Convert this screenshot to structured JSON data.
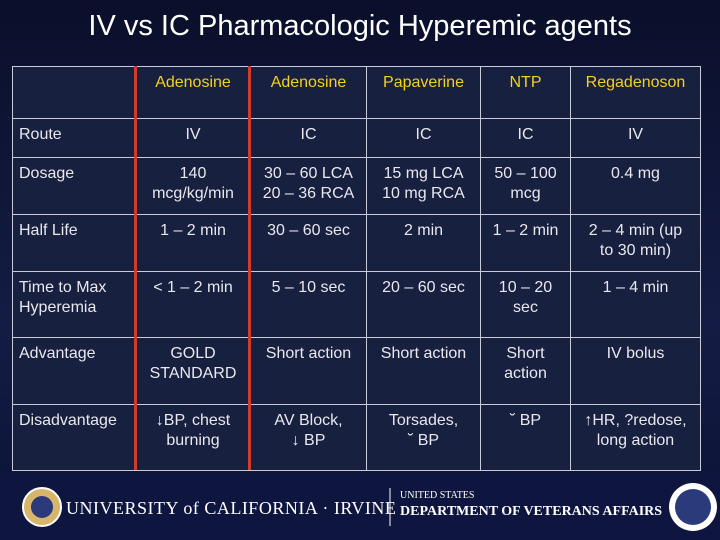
{
  "title": "IV vs IC Pharmacologic Hyperemic agents",
  "table": {
    "header": [
      "",
      "Adenosine",
      "Adenosine",
      "Papaverine",
      "NTP",
      "Regadenoson"
    ],
    "rows": [
      [
        "Route",
        "IV",
        "IC",
        "IC",
        "IC",
        "IV"
      ],
      [
        "Dosage",
        "140\nmcg/kg/min",
        "30 – 60 LCA\n20 – 36 RCA",
        "15 mg LCA\n10 mg RCA",
        "50 – 100\nmcg",
        "0.4 mg"
      ],
      [
        "Half Life",
        "1 – 2 min",
        "30 – 60 sec",
        "2 min",
        "1 – 2 min",
        "2 – 4 min (up\nto 30 min)"
      ],
      [
        "Time to Max\nHyperemia",
        "< 1 – 2 min",
        "5 – 10 sec",
        "20 – 60 sec",
        "10 – 20\nsec",
        "1 – 4 min"
      ],
      [
        "Advantage",
        "GOLD\nSTANDARD",
        "Short action",
        "Short action",
        "Short\naction",
        "IV bolus"
      ],
      [
        "Disadvantage",
        "↓BP, chest\nburning",
        "AV Block,\n↓ BP",
        "Torsades,\n˘ BP",
        "˘ BP",
        "↑HR, ?redose,\nlong action"
      ]
    ]
  },
  "footer": {
    "left": "UNIVERSITY of CALIFORNIA · IRVINE",
    "right_small": "UNITED STATES",
    "right_large": "DEPARTMENT OF VETERANS AFFAIRS"
  }
}
